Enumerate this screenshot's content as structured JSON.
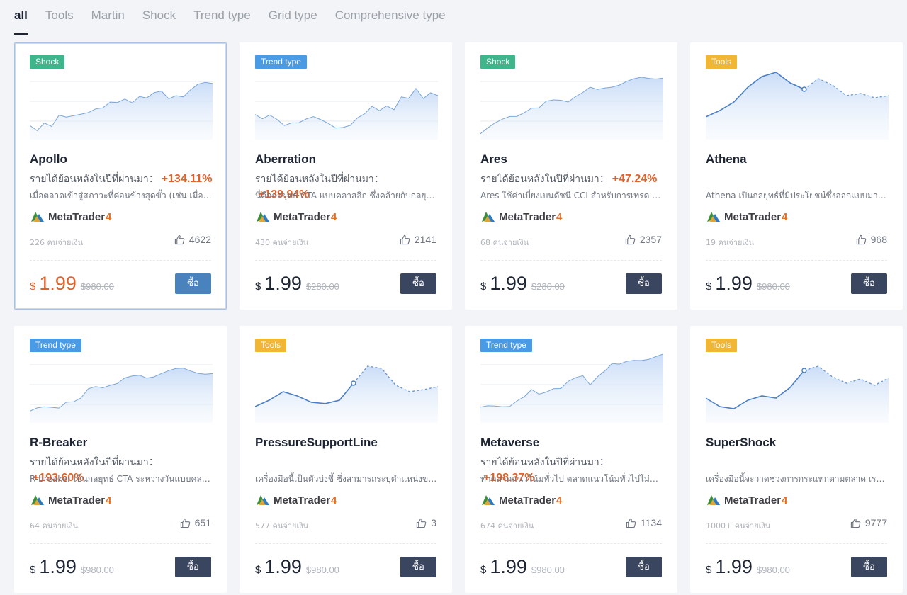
{
  "tabs": [
    {
      "label": "all",
      "active": true
    },
    {
      "label": "Tools"
    },
    {
      "label": "Martin"
    },
    {
      "label": "Shock"
    },
    {
      "label": "Trend type"
    },
    {
      "label": "Grid type"
    },
    {
      "label": "Comprehensive type"
    }
  ],
  "colors": {
    "badge_shock": "#3fb58c",
    "badge_trend": "#4a9be6",
    "badge_tools": "#f1b633",
    "price_highlight": "#e0612a",
    "buy_button": "#3a4660",
    "buy_button_selected": "#4a82bd"
  },
  "cards": [
    {
      "badge": "Shock",
      "badge_color": "#3fb58c",
      "chart": "equity",
      "name": "Apollo",
      "return_label": "รายได้ย้อนหลังในปีที่ผ่านมา：",
      "return_value": "+134.11%",
      "description": "เมื่อตลาดเข้าสู่สภาวะที่ค่อนข้างสุดขั้ว (เช่น เมื่อตลาดแกว่งตัวผันผวน",
      "platform": "MetaTrader",
      "platform_version": "4",
      "payers": "226 คนจ่ายเงิน",
      "likes": "4622",
      "currency": "$",
      "price": "1.99",
      "old_price": "$980.00",
      "buy_label": "ซื้อ",
      "selected": true
    },
    {
      "badge": "Trend type",
      "badge_color": "#4a9be6",
      "chart": "equity",
      "name": "Aberration",
      "return_label": "รายได้ย้อนหลังในปีที่ผ่านมา：",
      "return_value": "+139.94%",
      "description": "นี่คือกลยุทธ์ CTA แบบคลาสสิก ซึ่งคล้ายกับกลยุทธ์ช่องทาง",
      "platform": "MetaTrader",
      "platform_version": "4",
      "payers": "430 คนจ่ายเงิน",
      "likes": "2141",
      "currency": "$",
      "price": "1.99",
      "old_price": "$280.00",
      "buy_label": "ซื้อ",
      "selected": false
    },
    {
      "badge": "Shock",
      "badge_color": "#3fb58c",
      "chart": "equity",
      "name": "Ares",
      "return_label": "รายได้ย้อนหลังในปีที่ผ่านมา：",
      "return_value": "+47.24%",
      "description": "Ares ใช้ค่าเบี่ยงเบนดัชนี CCI สำหรับการเทรด ซึ่งเป็นกลยุทธ์",
      "platform": "MetaTrader",
      "platform_version": "4",
      "payers": "68 คนจ่ายเงิน",
      "likes": "2357",
      "currency": "$",
      "price": "1.99",
      "old_price": "$280.00",
      "buy_label": "ซื้อ",
      "selected": false
    },
    {
      "badge": "Tools",
      "badge_color": "#f1b633",
      "chart": "tool",
      "name": "Athena",
      "return_label": "",
      "return_value": "",
      "description": "Athena เป็นกลยุทธ์ที่มีประโยชน์ซึ่งออกแบบมาเพื่อ",
      "platform": "MetaTrader",
      "platform_version": "4",
      "payers": "19 คนจ่ายเงิน",
      "likes": "968",
      "currency": "$",
      "price": "1.99",
      "old_price": "$980.00",
      "buy_label": "ซื้อ",
      "selected": false
    },
    {
      "badge": "Trend type",
      "badge_color": "#4a9be6",
      "chart": "equity",
      "name": "R-Breaker",
      "return_label": "รายได้ย้อนหลังในปีที่ผ่านมา：",
      "return_value": "+193.60%",
      "description": "R-breaker เป็นกลยุทธ์ CTA ระหว่างวันแบบคลาสสิก",
      "platform": "MetaTrader",
      "platform_version": "4",
      "payers": "64 คนจ่ายเงิน",
      "likes": "651",
      "currency": "$",
      "price": "1.99",
      "old_price": "$980.00",
      "buy_label": "ซื้อ",
      "selected": false
    },
    {
      "badge": "Tools",
      "badge_color": "#f1b633",
      "chart": "tool",
      "name": "PressureSupportLine",
      "return_label": "",
      "return_value": "",
      "description": "เครื่องมือนี้เป็นตัวบ่งชี้ ซึ่งสามารถระบุตำแหน่งของแรงกดดัน",
      "platform": "MetaTrader",
      "platform_version": "4",
      "payers": "577 คนจ่ายเงิน",
      "likes": "3",
      "currency": "$",
      "price": "1.99",
      "old_price": "$980.00",
      "buy_label": "ซื้อ",
      "selected": false
    },
    {
      "badge": "Trend type",
      "badge_color": "#4a9be6",
      "chart": "equity",
      "name": "Metaverse",
      "return_label": "รายได้ย้อนหลังในปีที่ผ่านมา：",
      "return_value": "+198.37%",
      "description": "ทำตลาดแนวโน้มทั่วไป ตลาดแนวโน้มทั่วไปไม่ประสบผล",
      "platform": "MetaTrader",
      "platform_version": "4",
      "payers": "674 คนจ่ายเงิน",
      "likes": "1134",
      "currency": "$",
      "price": "1.99",
      "old_price": "$980.00",
      "buy_label": "ซื้อ",
      "selected": false
    },
    {
      "badge": "Tools",
      "badge_color": "#f1b633",
      "chart": "tool",
      "name": "SuperShock",
      "return_label": "",
      "return_value": "",
      "description": "เครื่องมือนี้จะวาดช่วงการกระแทกตามตลาด เราสามารถ",
      "platform": "MetaTrader",
      "platform_version": "4",
      "payers": "1000+ คนจ่ายเงิน",
      "likes": "9777",
      "currency": "$",
      "price": "1.99",
      "old_price": "$980.00",
      "buy_label": "ซื้อ",
      "selected": false
    }
  ]
}
